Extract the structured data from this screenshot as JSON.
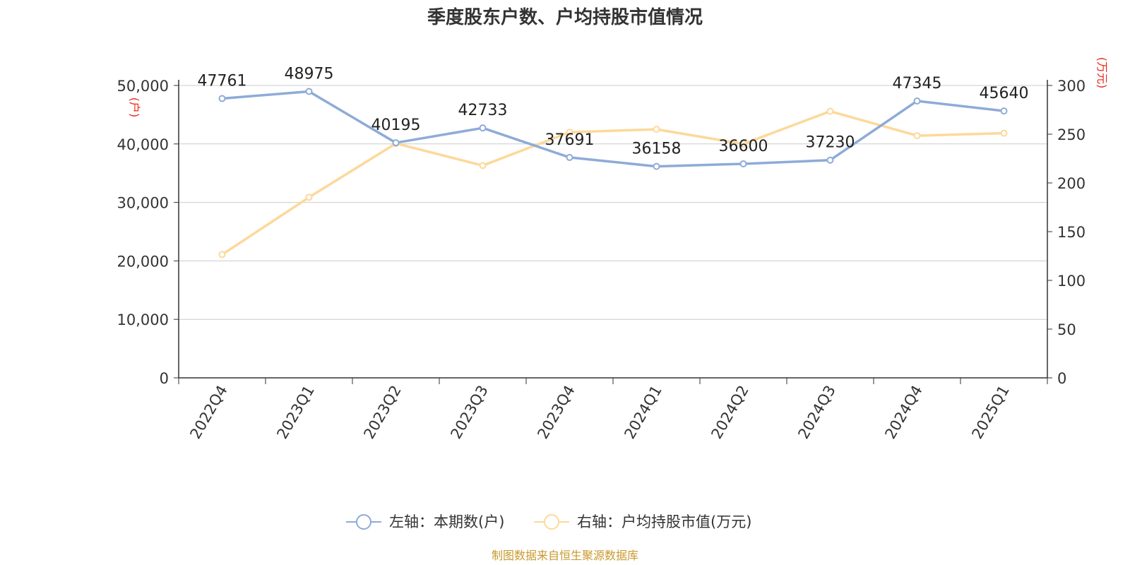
{
  "title": "季度股东户数、户均持股市值情况",
  "footer": "制图数据来自恒生聚源数据库",
  "colors": {
    "series_left": "#8eabd8",
    "series_right": "#fcd99a",
    "axis_unit": "#e8281b",
    "footer": "#c9992f",
    "grid": "#cccccc",
    "text": "#333333"
  },
  "chart_data": {
    "type": "line",
    "title": "季度股东户数、户均持股市值情况",
    "categories": [
      "2022Q4",
      "2023Q1",
      "2023Q2",
      "2023Q3",
      "2023Q4",
      "2024Q1",
      "2024Q2",
      "2024Q3",
      "2024Q4",
      "2025Q1"
    ],
    "y_left": {
      "label": "(户)",
      "range": [
        0,
        50000
      ],
      "ticks": [
        0,
        10000,
        20000,
        30000,
        40000,
        50000
      ],
      "tick_labels": [
        "0",
        "10,000",
        "20,000",
        "30,000",
        "40,000",
        "50,000"
      ]
    },
    "y_right": {
      "label": "(万元)",
      "range": [
        0,
        300
      ],
      "ticks": [
        0,
        50,
        100,
        150,
        200,
        250,
        300
      ],
      "tick_labels": [
        "0",
        "50",
        "100",
        "150",
        "200",
        "250",
        "300"
      ]
    },
    "grid": true,
    "legend_position": "bottom",
    "series": [
      {
        "name": "左轴：本期数(户)",
        "axis": "left",
        "values": [
          47761,
          48975,
          40195,
          42733,
          37691,
          36158,
          36600,
          37230,
          47345,
          45640
        ],
        "data_labels": [
          "47761",
          "48975",
          "40195",
          "42733",
          "37691",
          "36158",
          "36600",
          "37230",
          "47345",
          "45640"
        ]
      },
      {
        "name": "右轴：户均持股市值(万元)",
        "axis": "right",
        "values": [
          126.5,
          185.2,
          240.5,
          217.8,
          252.0,
          255.0,
          240.0,
          273.5,
          248.5,
          251.0
        ]
      }
    ]
  }
}
